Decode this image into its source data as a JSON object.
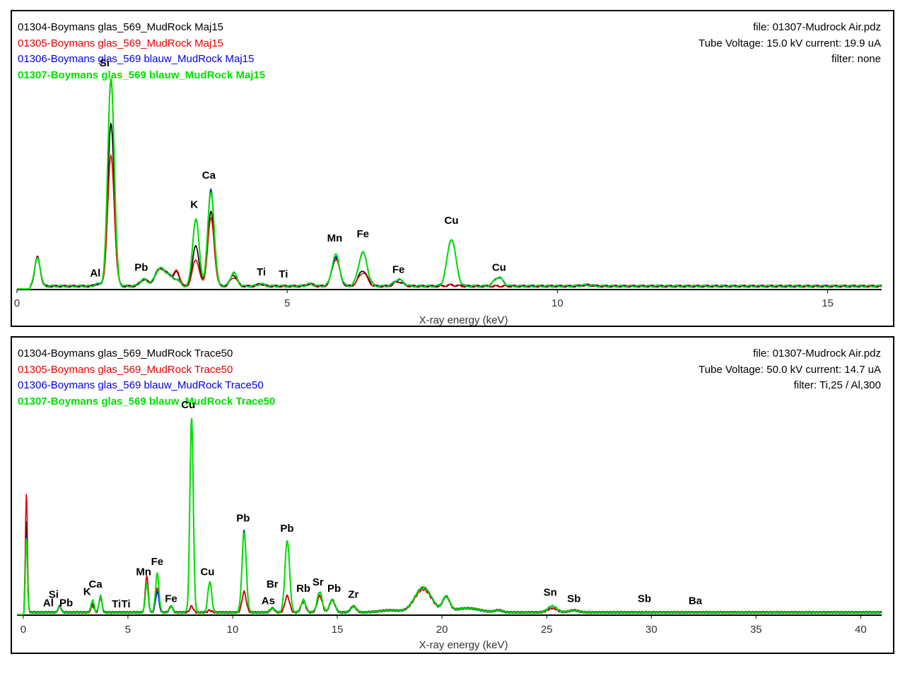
{
  "colors": {
    "s1": "#000000",
    "s2": "#e60000",
    "s3": "#0000e6",
    "s4": "#00e000"
  },
  "chart_data": [
    {
      "type": "line",
      "xlabel": "X-ray energy (keV)",
      "xlim": [
        0,
        16
      ],
      "xticks": [
        0,
        5,
        10,
        15
      ],
      "legend": [
        {
          "name": "01304-Boymans glas_569_MudRock Maj15",
          "color": "#000000"
        },
        {
          "name": "01305-Boymans glas_569_MudRock Maj15",
          "color": "#e60000"
        },
        {
          "name": "01306-Boymans glas_569 blauw_MudRock Maj15",
          "color": "#0000e6"
        },
        {
          "name": "01307-Boymans glas_569 blauw_MudRock Maj15",
          "color": "#00e000"
        }
      ],
      "info": [
        "file: 01307-Mudrock Air.pdz",
        "Tube Voltage: 15.0 kV current: 19.9 uA",
        "filter: none"
      ],
      "baseline": 0.012,
      "peaks": [
        {
          "x": 0.38,
          "w": 0.05,
          "h": [
            0.13,
            0.13,
            0.13,
            0.13
          ]
        },
        {
          "x": 1.49,
          "w": 0.05,
          "h": [
            0.01,
            0.01,
            0.01,
            0.01
          ]
        },
        {
          "x": 1.74,
          "w": 0.06,
          "h": [
            0.72,
            0.58,
            0.92,
            0.93
          ]
        },
        {
          "x": 2.35,
          "w": 0.07,
          "h": [
            0.03,
            0.03,
            0.03,
            0.03
          ]
        },
        {
          "x": 2.65,
          "w": 0.09,
          "h": [
            0.08,
            0.08,
            0.08,
            0.08
          ]
        },
        {
          "x": 2.82,
          "w": 0.06,
          "h": [
            0.04,
            0.04,
            0.04,
            0.04
          ]
        },
        {
          "x": 2.96,
          "w": 0.05,
          "h": [
            0.06,
            0.07,
            0.03,
            0.03
          ]
        },
        {
          "x": 3.31,
          "w": 0.06,
          "h": [
            0.18,
            0.12,
            0.3,
            0.3
          ]
        },
        {
          "x": 3.59,
          "w": 0.06,
          "h": [
            0.33,
            0.3,
            0.43,
            0.42
          ]
        },
        {
          "x": 4.01,
          "w": 0.06,
          "h": [
            0.05,
            0.04,
            0.06,
            0.06
          ]
        },
        {
          "x": 4.51,
          "w": 0.06,
          "h": [
            0.01,
            0.01,
            0.01,
            0.01
          ]
        },
        {
          "x": 5.42,
          "w": 0.06,
          "h": [
            0.01,
            0.01,
            0.01,
            0.01
          ]
        },
        {
          "x": 5.9,
          "w": 0.07,
          "h": [
            0.13,
            0.12,
            0.13,
            0.14
          ]
        },
        {
          "x": 6.4,
          "w": 0.08,
          "h": [
            0.07,
            0.06,
            0.15,
            0.15
          ]
        },
        {
          "x": 7.06,
          "w": 0.08,
          "h": [
            0.02,
            0.02,
            0.03,
            0.03
          ]
        },
        {
          "x": 8.04,
          "w": 0.08,
          "h": [
            0.005,
            0.005,
            0.21,
            0.21
          ]
        },
        {
          "x": 8.91,
          "w": 0.08,
          "h": [
            0.0,
            0.0,
            0.04,
            0.04
          ]
        },
        {
          "x": 10.55,
          "w": 0.1,
          "h": [
            0.005,
            0.005,
            0.005,
            0.005
          ]
        }
      ],
      "labels": [
        {
          "t": "Al",
          "x": 1.45,
          "y": 0.055
        },
        {
          "t": "Si",
          "x": 1.62,
          "y": 0.99
        },
        {
          "t": "Pb",
          "x": 2.3,
          "y": 0.08
        },
        {
          "t": "K",
          "x": 3.28,
          "y": 0.36
        },
        {
          "t": "Ca",
          "x": 3.55,
          "y": 0.49
        },
        {
          "t": "Ti",
          "x": 4.52,
          "y": 0.06
        },
        {
          "t": "Ti",
          "x": 4.93,
          "y": 0.05
        },
        {
          "t": "Mn",
          "x": 5.88,
          "y": 0.21
        },
        {
          "t": "Fe",
          "x": 6.4,
          "y": 0.23
        },
        {
          "t": "Fe",
          "x": 7.06,
          "y": 0.07
        },
        {
          "t": "Cu",
          "x": 8.04,
          "y": 0.29
        },
        {
          "t": "Cu",
          "x": 8.92,
          "y": 0.08
        }
      ]
    },
    {
      "type": "line",
      "xlabel": "X-ray energy (keV)",
      "xlim": [
        -0.3,
        41
      ],
      "xticks": [
        0,
        5,
        10,
        15,
        20,
        25,
        30,
        35,
        40
      ],
      "legend": [
        {
          "name": "01304-Boymans glas_569_MudRock Trace50",
          "color": "#000000"
        },
        {
          "name": "01305-Boymans glas_569_MudRock Trace50",
          "color": "#e60000"
        },
        {
          "name": "01306-Boymans glas_569 blauw_MudRock Trace50",
          "color": "#0000e6"
        },
        {
          "name": "01307-Boymans glas_569 blauw_MudRock Trace50",
          "color": "#00e000"
        }
      ],
      "info": [
        "file: 01307-Mudrock Air.pdz",
        "Tube Voltage: 50.0 kV current: 14.7 uA",
        "filter: Ti,25 / Al,300"
      ],
      "baseline": 0.01,
      "peaks": [
        {
          "x": 0.15,
          "w": 0.05,
          "h": [
            0.45,
            0.58,
            0.37,
            0.36
          ]
        },
        {
          "x": 1.74,
          "w": 0.07,
          "h": [
            0.03,
            0.03,
            0.03,
            0.03
          ]
        },
        {
          "x": 3.31,
          "w": 0.07,
          "h": [
            0.04,
            0.03,
            0.06,
            0.06
          ]
        },
        {
          "x": 3.69,
          "w": 0.07,
          "h": [
            0.07,
            0.07,
            0.08,
            0.08
          ]
        },
        {
          "x": 5.9,
          "w": 0.07,
          "h": [
            0.18,
            0.18,
            0.14,
            0.14
          ]
        },
        {
          "x": 6.4,
          "w": 0.08,
          "h": [
            0.12,
            0.12,
            0.1,
            0.19
          ]
        },
        {
          "x": 7.06,
          "w": 0.08,
          "h": [
            0.03,
            0.03,
            0.03,
            0.03
          ]
        },
        {
          "x": 8.04,
          "w": 0.08,
          "h": [
            0.03,
            0.03,
            0.95,
            0.95
          ]
        },
        {
          "x": 8.91,
          "w": 0.09,
          "h": [
            0.01,
            0.01,
            0.15,
            0.15
          ]
        },
        {
          "x": 10.55,
          "w": 0.1,
          "h": [
            0.1,
            0.1,
            0.4,
            0.39
          ]
        },
        {
          "x": 11.9,
          "w": 0.1,
          "h": [
            0.02,
            0.02,
            0.02,
            0.02
          ]
        },
        {
          "x": 12.61,
          "w": 0.11,
          "h": [
            0.08,
            0.08,
            0.35,
            0.35
          ]
        },
        {
          "x": 13.38,
          "w": 0.11,
          "h": [
            0.05,
            0.05,
            0.06,
            0.06
          ]
        },
        {
          "x": 14.16,
          "w": 0.12,
          "h": [
            0.08,
            0.08,
            0.1,
            0.1
          ]
        },
        {
          "x": 14.76,
          "w": 0.13,
          "h": [
            0.06,
            0.06,
            0.06,
            0.06
          ]
        },
        {
          "x": 15.77,
          "w": 0.13,
          "h": [
            0.03,
            0.03,
            0.03,
            0.03
          ]
        },
        {
          "x": 17.5,
          "w": 0.5,
          "h": [
            0.01,
            0.01,
            0.01,
            0.01
          ]
        },
        {
          "x": 19.1,
          "w": 0.4,
          "h": [
            0.12,
            0.11,
            0.12,
            0.12
          ]
        },
        {
          "x": 20.2,
          "w": 0.17,
          "h": [
            0.07,
            0.07,
            0.07,
            0.07
          ]
        },
        {
          "x": 21.2,
          "w": 0.6,
          "h": [
            0.02,
            0.02,
            0.02,
            0.02
          ]
        },
        {
          "x": 22.7,
          "w": 0.18,
          "h": [
            0.01,
            0.01,
            0.01,
            0.01
          ]
        },
        {
          "x": 25.27,
          "w": 0.22,
          "h": [
            0.02,
            0.02,
            0.03,
            0.03
          ]
        },
        {
          "x": 26.3,
          "w": 0.22,
          "h": [
            0.01,
            0.01,
            0.01,
            0.01
          ]
        }
      ],
      "labels": [
        {
          "t": "Al",
          "x": 1.2,
          "y": 0.04
        },
        {
          "t": "Si",
          "x": 1.45,
          "y": 0.08
        },
        {
          "t": "Pb",
          "x": 2.05,
          "y": 0.04
        },
        {
          "t": "K",
          "x": 3.05,
          "y": 0.095
        },
        {
          "t": "Ca",
          "x": 3.45,
          "y": 0.13
        },
        {
          "t": "Ti",
          "x": 4.45,
          "y": 0.035
        },
        {
          "t": "Ti",
          "x": 4.9,
          "y": 0.035
        },
        {
          "t": "Mn",
          "x": 5.75,
          "y": 0.19
        },
        {
          "t": "Fe",
          "x": 6.4,
          "y": 0.24
        },
        {
          "t": "Fe",
          "x": 7.06,
          "y": 0.06
        },
        {
          "t": "Cu",
          "x": 7.88,
          "y": 1.0
        },
        {
          "t": "Cu",
          "x": 8.8,
          "y": 0.19
        },
        {
          "t": "Pb",
          "x": 10.5,
          "y": 0.45
        },
        {
          "t": "As",
          "x": 11.7,
          "y": 0.05
        },
        {
          "t": "Br",
          "x": 11.9,
          "y": 0.13
        },
        {
          "t": "Pb",
          "x": 12.6,
          "y": 0.4
        },
        {
          "t": "Rb",
          "x": 13.38,
          "y": 0.11
        },
        {
          "t": "Sr",
          "x": 14.08,
          "y": 0.14
        },
        {
          "t": "Pb",
          "x": 14.85,
          "y": 0.11
        },
        {
          "t": "Zr",
          "x": 15.77,
          "y": 0.08
        },
        {
          "t": "Sn",
          "x": 25.17,
          "y": 0.09
        },
        {
          "t": "Sb",
          "x": 26.3,
          "y": 0.06
        },
        {
          "t": "Sb",
          "x": 29.67,
          "y": 0.06
        },
        {
          "t": "Ba",
          "x": 32.1,
          "y": 0.05
        }
      ]
    }
  ]
}
